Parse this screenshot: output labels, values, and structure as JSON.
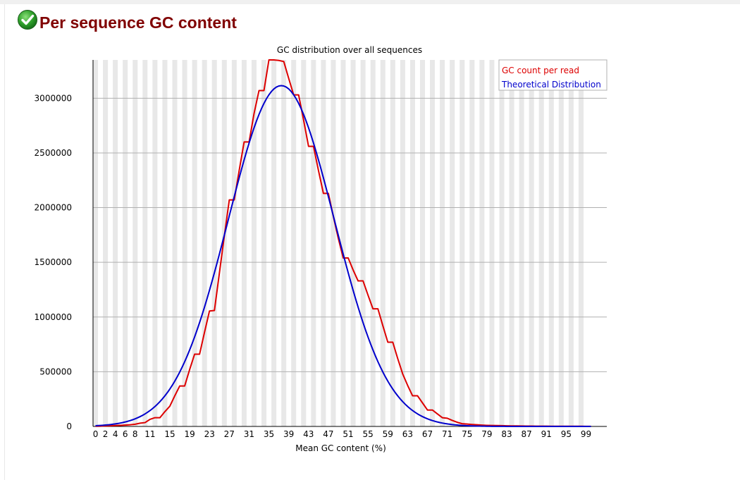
{
  "module": {
    "status_icon": "check-circle-icon",
    "title": "Per sequence GC content"
  },
  "colors": {
    "title": "#800000",
    "series_observed": "#dd0000",
    "series_theoretical": "#0000cc",
    "stripe": "#e8e8e8",
    "grid": "#b0b0b0"
  },
  "chart_data": {
    "type": "line",
    "title": "GC distribution over all sequences",
    "xlabel": "Mean GC content (%)",
    "ylabel": "",
    "xlim": [
      0,
      100
    ],
    "ylim": [
      0,
      3350000
    ],
    "grid": true,
    "legend": "top-right",
    "x_tick_labels": [
      "0",
      "2",
      "4",
      "6",
      "8",
      "11",
      "15",
      "19",
      "23",
      "27",
      "31",
      "35",
      "39",
      "43",
      "47",
      "51",
      "55",
      "59",
      "63",
      "67",
      "71",
      "75",
      "79",
      "83",
      "87",
      "91",
      "95",
      "99"
    ],
    "y_ticks": [
      0,
      500000,
      1000000,
      1500000,
      2000000,
      2500000,
      3000000
    ],
    "y_tick_labels": [
      "0",
      "500000",
      "1000000",
      "1500000",
      "2000000",
      "2500000",
      "3000000"
    ],
    "series": [
      {
        "name": "GC count per read",
        "color": "#dd0000",
        "x": [
          0,
          1,
          2,
          3,
          4,
          5,
          6,
          7,
          8,
          9,
          10,
          11,
          12,
          13,
          14,
          15,
          16,
          17,
          18,
          19,
          20,
          21,
          22,
          23,
          24,
          25,
          26,
          27,
          28,
          29,
          30,
          31,
          32,
          33,
          34,
          35,
          36,
          37,
          38,
          39,
          40,
          41,
          42,
          43,
          44,
          45,
          46,
          47,
          48,
          49,
          50,
          51,
          52,
          53,
          54,
          55,
          56,
          57,
          58,
          59,
          60,
          61,
          62,
          63,
          64,
          65,
          66,
          67,
          68,
          69,
          70,
          71,
          72,
          73,
          74,
          75,
          76,
          77,
          78,
          79,
          80,
          81,
          82,
          83,
          84,
          85,
          86,
          87,
          88,
          89,
          90,
          91,
          92,
          93,
          94,
          95,
          96,
          97,
          98,
          99,
          100
        ],
        "values": [
          2000,
          2500,
          5000,
          6000,
          8000,
          10000,
          12000,
          15000,
          20000,
          30000,
          35000,
          65000,
          80000,
          80000,
          135000,
          185000,
          280000,
          370000,
          370000,
          520000,
          660000,
          660000,
          860000,
          1055000,
          1060000,
          1400000,
          1740000,
          2070000,
          2070000,
          2340000,
          2600000,
          2600000,
          2860000,
          3070000,
          3070000,
          3350000,
          3350000,
          3345000,
          3335000,
          3180000,
          3030000,
          3030000,
          2800000,
          2560000,
          2560000,
          2340000,
          2130000,
          2130000,
          1920000,
          1720000,
          1540000,
          1540000,
          1430000,
          1330000,
          1330000,
          1200000,
          1075000,
          1075000,
          920000,
          770000,
          770000,
          620000,
          480000,
          375000,
          280000,
          280000,
          215000,
          150000,
          150000,
          115000,
          80000,
          75000,
          55000,
          38000,
          25000,
          22000,
          18000,
          15000,
          12000,
          10000,
          9000,
          8000,
          7000,
          6000,
          5000,
          4500,
          4000,
          3500,
          3000,
          2800,
          2500,
          2200,
          2000,
          1800,
          1700,
          1600,
          1500,
          1400,
          1300,
          1200,
          1000
        ]
      },
      {
        "name": "Theoretical Distribution",
        "color": "#0000cc",
        "mean": 37.5,
        "sd": 10.7,
        "peak": 3115000
      }
    ]
  }
}
